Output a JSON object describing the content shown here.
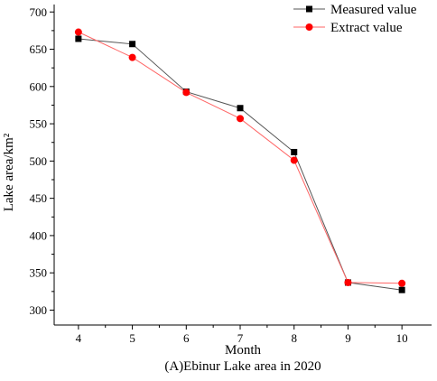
{
  "chart_data": {
    "type": "line",
    "title": "",
    "caption": "(A)Ebinur Lake area in 2020",
    "xlabel": "Month",
    "ylabel": "Lake area/km²",
    "x": [
      4,
      5,
      6,
      7,
      8,
      9,
      10
    ],
    "xlim": [
      3.55,
      10.55
    ],
    "ylim": [
      280,
      710
    ],
    "yticks": [
      300,
      350,
      400,
      450,
      500,
      550,
      600,
      650,
      700
    ],
    "grid": false,
    "legend_position": "top-right",
    "series": [
      {
        "name": "Measured value",
        "marker": "square",
        "marker_color": "#000000",
        "line_color": "#555555",
        "values": [
          664,
          657,
          593,
          571,
          512,
          337,
          327
        ]
      },
      {
        "name": "Extract value",
        "marker": "circle",
        "marker_color": "#ff0000",
        "line_color": "#ff6666",
        "values": [
          673,
          639,
          592,
          557,
          501,
          337,
          336
        ]
      }
    ]
  }
}
